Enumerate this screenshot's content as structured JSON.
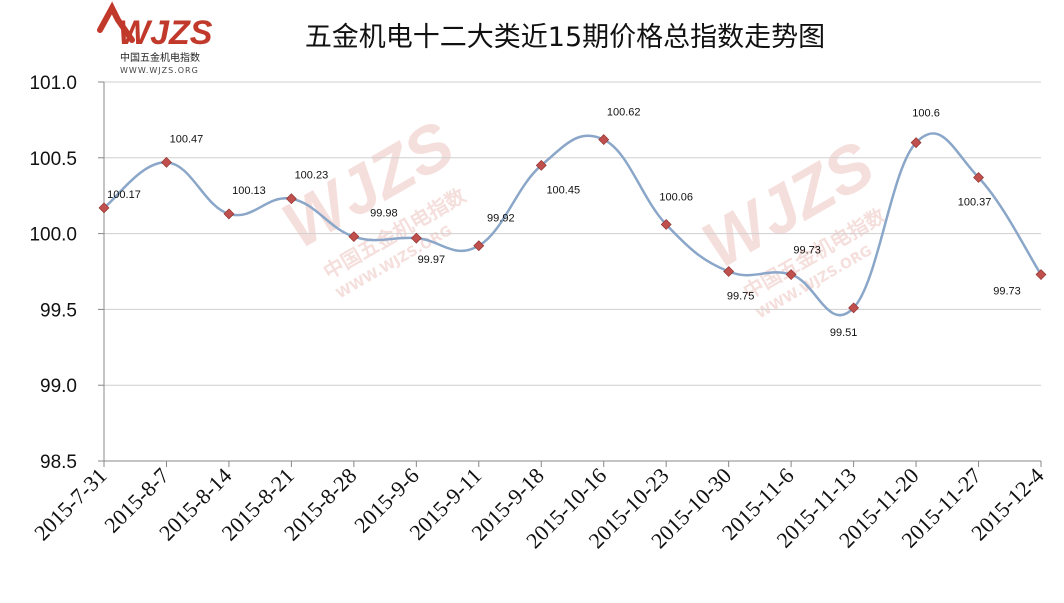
{
  "chart_data": {
    "type": "line",
    "title": "五金机电十二大类近15期价格总指数走势图",
    "categories": [
      "2015-7-31",
      "2015-8-7",
      "2015-8-14",
      "2015-8-21",
      "2015-8-28",
      "2015-9-6",
      "2015-9-11",
      "2015-9-18",
      "2015-10-16",
      "2015-10-23",
      "2015-10-30",
      "2015-11-6",
      "2015-11-13",
      "2015-11-20",
      "2015-11-27",
      "2015-12-4"
    ],
    "values": [
      100.17,
      100.47,
      100.13,
      100.23,
      99.98,
      99.97,
      99.92,
      100.45,
      100.62,
      100.06,
      99.75,
      99.73,
      99.51,
      100.6,
      100.37,
      99.73
    ],
    "data_labels": [
      "100.17",
      "100.47",
      "100.13",
      "100.23",
      "99.98",
      "99.97",
      "99.92",
      "100.45",
      "100.62",
      "100.06",
      "99.75",
      "99.73",
      "99.51",
      "100.6",
      "100.37",
      "99.73"
    ],
    "ylim": [
      98.5,
      101.0
    ],
    "yticks": [
      "98.5",
      "99.0",
      "99.5",
      "100.0",
      "100.5",
      "101.0"
    ],
    "grid": true,
    "line_color": "#8aa6c8",
    "marker_color": "#c0504d",
    "xlabel": "",
    "ylabel": ""
  },
  "logo": {
    "main": "WJZS",
    "sub": "中国五金机电指数",
    "url": "WWW.WJZS.ORG",
    "color": "#c0392b"
  },
  "watermarks": {
    "main": "WJZS",
    "sub": "中国五金机电指数",
    "url": "WWW.WJZS.ORG"
  }
}
